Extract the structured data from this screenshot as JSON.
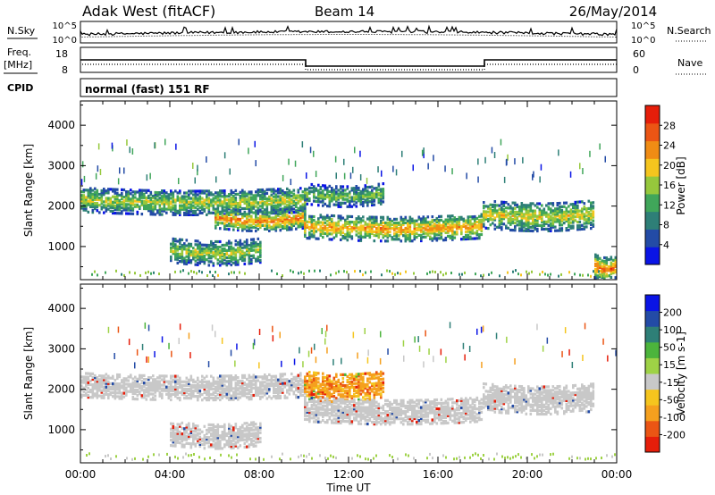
{
  "header": {
    "station": "Adak West (fitACF)",
    "beam": "Beam 14",
    "date": "26/May/2014"
  },
  "top_panel": {
    "left_label": "N.Sky",
    "right_label": "N.Search",
    "left_ticks": [
      "10^5",
      "10^0"
    ],
    "right_ticks": [
      "10^5",
      "10^0"
    ]
  },
  "freq_panel": {
    "left_label": "Freq.",
    "left_unit": "[MHz]",
    "right_label": "Nave",
    "left_ticks": [
      "18",
      "8"
    ],
    "right_ticks": [
      "60",
      "0"
    ],
    "cpid_label": "CPID",
    "cpid_text": "normal (fast) 151 RF"
  },
  "colors": {
    "power": [
      "#0a14e6",
      "#234ba6",
      "#2e7f77",
      "#40a65a",
      "#96c83c",
      "#f5c51e",
      "#f08c14",
      "#eb5514",
      "#e61e0a"
    ],
    "velocity": [
      "#e61e0a",
      "#eb5514",
      "#f5a01e",
      "#f5c51e",
      "#c8c8c8",
      "#9ed246",
      "#4cb43c",
      "#2e7f77",
      "#234ba6",
      "#0a14e6"
    ]
  },
  "chart_data": [
    {
      "type": "heatmap",
      "title": "Power",
      "ylabel": "Slant Range [km]",
      "xlabel": "",
      "ylim": [
        180,
        4600
      ],
      "xlim": [
        0,
        24
      ],
      "yticks": [
        "4000",
        "3000",
        "2000",
        "1000"
      ],
      "colorbar": {
        "label": "Power [dB]",
        "range": [
          0,
          32
        ],
        "ticks": [
          "28",
          "24",
          "20",
          "16",
          "12",
          "8",
          "4"
        ]
      },
      "bands": [
        {
          "t_start": 0.0,
          "t_end": 10.0,
          "r_center": 2150,
          "width": 300,
          "intensity": 0.55
        },
        {
          "t_start": 6.0,
          "t_end": 10.0,
          "r_center": 1700,
          "width": 250,
          "intensity": 0.8
        },
        {
          "t_start": 10.0,
          "t_end": 18.0,
          "r_center": 1500,
          "width": 300,
          "intensity": 0.75
        },
        {
          "t_start": 10.0,
          "t_end": 13.5,
          "r_center": 2300,
          "width": 250,
          "intensity": 0.45
        },
        {
          "t_start": 4.0,
          "t_end": 8.0,
          "r_center": 900,
          "width": 300,
          "intensity": 0.55
        },
        {
          "t_start": 18.0,
          "t_end": 23.0,
          "r_center": 1800,
          "width": 350,
          "intensity": 0.6
        },
        {
          "t_start": 23.0,
          "t_end": 24.0,
          "r_center": 500,
          "width": 300,
          "intensity": 0.85
        }
      ]
    },
    {
      "type": "heatmap",
      "title": "Velocity",
      "ylabel": "Slant Range [km]",
      "xlabel": "Time UT",
      "ylim": [
        180,
        4600
      ],
      "xlim": [
        0,
        24
      ],
      "xticks": [
        "00:00",
        "04:00",
        "08:00",
        "12:00",
        "16:00",
        "20:00",
        "00:00"
      ],
      "yticks": [
        "4000",
        "3000",
        "2000",
        "1000"
      ],
      "colorbar": {
        "label": "Velocity [m s-1]",
        "ticks": [
          "200",
          "100",
          "50",
          "15",
          "-15",
          "-50",
          "-100",
          "-200"
        ]
      },
      "bands": [
        {
          "t_start": 0.0,
          "t_end": 10.0,
          "r_center": 2100,
          "width": 300,
          "velocity": 0
        },
        {
          "t_start": 10.0,
          "t_end": 13.5,
          "r_center": 2100,
          "width": 350,
          "velocity": -40
        },
        {
          "t_start": 10.0,
          "t_end": 18.0,
          "r_center": 1500,
          "width": 300,
          "velocity": 0
        },
        {
          "t_start": 18.0,
          "t_end": 23.0,
          "r_center": 1800,
          "width": 350,
          "velocity": 0
        },
        {
          "t_start": 4.0,
          "t_end": 8.0,
          "r_center": 900,
          "width": 300,
          "velocity": 0
        }
      ]
    }
  ]
}
